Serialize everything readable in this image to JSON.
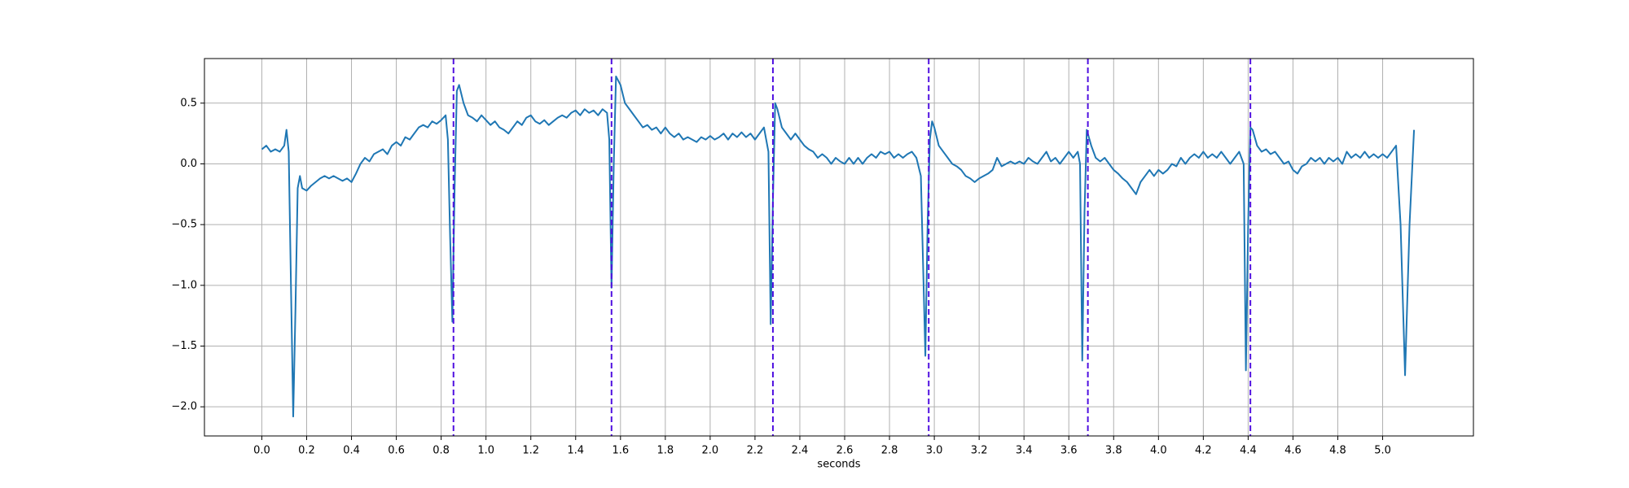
{
  "chart_data": {
    "type": "line",
    "x_label": "seconds",
    "x": [
      0,
      0.02,
      0.04,
      0.06,
      0.08,
      0.1,
      0.11,
      0.12,
      0.13,
      0.14,
      0.15,
      0.16,
      0.17,
      0.18,
      0.2,
      0.22,
      0.24,
      0.26,
      0.28,
      0.3,
      0.32,
      0.34,
      0.36,
      0.38,
      0.4,
      0.42,
      0.44,
      0.46,
      0.48,
      0.5,
      0.52,
      0.54,
      0.56,
      0.58,
      0.6,
      0.62,
      0.64,
      0.66,
      0.68,
      0.7,
      0.72,
      0.74,
      0.76,
      0.78,
      0.8,
      0.82,
      0.83,
      0.84,
      0.85,
      0.86,
      0.87,
      0.88,
      0.9,
      0.92,
      0.94,
      0.96,
      0.98,
      1.0,
      1.02,
      1.04,
      1.06,
      1.08,
      1.1,
      1.12,
      1.14,
      1.16,
      1.18,
      1.2,
      1.22,
      1.24,
      1.26,
      1.28,
      1.3,
      1.32,
      1.34,
      1.36,
      1.38,
      1.4,
      1.42,
      1.44,
      1.46,
      1.48,
      1.5,
      1.52,
      1.54,
      1.55,
      1.56,
      1.57,
      1.58,
      1.6,
      1.62,
      1.64,
      1.66,
      1.68,
      1.7,
      1.72,
      1.74,
      1.76,
      1.78,
      1.8,
      1.82,
      1.84,
      1.86,
      1.88,
      1.9,
      1.92,
      1.94,
      1.96,
      1.98,
      2.0,
      2.02,
      2.04,
      2.06,
      2.08,
      2.1,
      2.12,
      2.14,
      2.16,
      2.18,
      2.2,
      2.22,
      2.24,
      2.26,
      2.27,
      2.28,
      2.29,
      2.3,
      2.32,
      2.34,
      2.36,
      2.38,
      2.4,
      2.42,
      2.44,
      2.46,
      2.48,
      2.5,
      2.52,
      2.54,
      2.56,
      2.58,
      2.6,
      2.62,
      2.64,
      2.66,
      2.68,
      2.7,
      2.72,
      2.74,
      2.76,
      2.78,
      2.8,
      2.82,
      2.84,
      2.86,
      2.88,
      2.9,
      2.92,
      2.94,
      2.96,
      2.97,
      2.98,
      2.99,
      3.0,
      3.02,
      3.04,
      3.06,
      3.08,
      3.1,
      3.12,
      3.14,
      3.16,
      3.18,
      3.2,
      3.22,
      3.24,
      3.26,
      3.28,
      3.3,
      3.32,
      3.34,
      3.36,
      3.38,
      3.4,
      3.42,
      3.44,
      3.46,
      3.48,
      3.5,
      3.52,
      3.54,
      3.56,
      3.58,
      3.6,
      3.62,
      3.64,
      3.65,
      3.66,
      3.67,
      3.68,
      3.7,
      3.72,
      3.74,
      3.76,
      3.78,
      3.8,
      3.82,
      3.84,
      3.86,
      3.88,
      3.9,
      3.92,
      3.94,
      3.96,
      3.98,
      4.0,
      4.02,
      4.04,
      4.06,
      4.08,
      4.1,
      4.12,
      4.14,
      4.16,
      4.18,
      4.2,
      4.22,
      4.24,
      4.26,
      4.28,
      4.3,
      4.32,
      4.34,
      4.36,
      4.38,
      4.39,
      4.4,
      4.41,
      4.42,
      4.44,
      4.46,
      4.48,
      4.5,
      4.52,
      4.54,
      4.56,
      4.58,
      4.6,
      4.62,
      4.64,
      4.66,
      4.68,
      4.7,
      4.72,
      4.74,
      4.76,
      4.78,
      4.8,
      4.82,
      4.84,
      4.86,
      4.88,
      4.9,
      4.92,
      4.94,
      4.96,
      4.98,
      5.0,
      5.02,
      5.04,
      5.06,
      5.08,
      5.1,
      5.12,
      5.14
    ],
    "series": [
      {
        "color": "#1f77b4",
        "values": [
          0.12,
          0.15,
          0.1,
          0.12,
          0.1,
          0.15,
          0.28,
          0.1,
          -1.0,
          -2.08,
          -1.2,
          -0.2,
          -0.1,
          -0.2,
          -0.22,
          -0.18,
          -0.15,
          -0.12,
          -0.1,
          -0.12,
          -0.1,
          -0.12,
          -0.14,
          -0.12,
          -0.15,
          -0.08,
          0.0,
          0.05,
          0.02,
          0.08,
          0.1,
          0.12,
          0.08,
          0.15,
          0.18,
          0.15,
          0.22,
          0.2,
          0.25,
          0.3,
          0.32,
          0.3,
          0.35,
          0.33,
          0.36,
          0.4,
          0.2,
          -0.6,
          -1.3,
          -0.2,
          0.6,
          0.65,
          0.5,
          0.4,
          0.38,
          0.35,
          0.4,
          0.36,
          0.32,
          0.35,
          0.3,
          0.28,
          0.25,
          0.3,
          0.35,
          0.32,
          0.38,
          0.4,
          0.35,
          0.33,
          0.36,
          0.32,
          0.35,
          0.38,
          0.4,
          0.38,
          0.42,
          0.44,
          0.4,
          0.45,
          0.42,
          0.44,
          0.4,
          0.45,
          0.42,
          0.2,
          -1.02,
          0.0,
          0.72,
          0.65,
          0.5,
          0.45,
          0.4,
          0.35,
          0.3,
          0.32,
          0.28,
          0.3,
          0.25,
          0.3,
          0.25,
          0.22,
          0.25,
          0.2,
          0.22,
          0.2,
          0.18,
          0.22,
          0.2,
          0.23,
          0.2,
          0.22,
          0.25,
          0.2,
          0.25,
          0.22,
          0.26,
          0.22,
          0.25,
          0.2,
          0.25,
          0.3,
          0.1,
          -1.32,
          -0.3,
          0.5,
          0.45,
          0.3,
          0.25,
          0.2,
          0.25,
          0.2,
          0.15,
          0.12,
          0.1,
          0.05,
          0.08,
          0.05,
          0.0,
          0.05,
          0.02,
          0.0,
          0.05,
          0.0,
          0.05,
          0.0,
          0.05,
          0.08,
          0.05,
          0.1,
          0.08,
          0.1,
          0.05,
          0.08,
          0.05,
          0.08,
          0.1,
          0.05,
          -0.1,
          -1.58,
          -0.5,
          0.2,
          0.35,
          0.3,
          0.15,
          0.1,
          0.05,
          0.0,
          -0.02,
          -0.05,
          -0.1,
          -0.12,
          -0.15,
          -0.12,
          -0.1,
          -0.08,
          -0.05,
          0.05,
          -0.02,
          0.0,
          0.02,
          0.0,
          0.02,
          0.0,
          0.05,
          0.02,
          0.0,
          0.05,
          0.1,
          0.02,
          0.05,
          0.0,
          0.05,
          0.1,
          0.05,
          0.1,
          0.0,
          -1.62,
          -0.4,
          0.28,
          0.15,
          0.05,
          0.02,
          0.05,
          0.0,
          -0.05,
          -0.08,
          -0.12,
          -0.15,
          -0.2,
          -0.25,
          -0.15,
          -0.1,
          -0.05,
          -0.1,
          -0.05,
          -0.08,
          -0.05,
          0.0,
          -0.02,
          0.05,
          0.0,
          0.05,
          0.08,
          0.05,
          0.1,
          0.05,
          0.08,
          0.05,
          0.1,
          0.05,
          0.0,
          0.05,
          0.1,
          0.0,
          -1.7,
          -0.5,
          0.3,
          0.28,
          0.15,
          0.1,
          0.12,
          0.08,
          0.1,
          0.05,
          0.0,
          0.02,
          -0.05,
          -0.08,
          -0.02,
          0.0,
          0.05,
          0.02,
          0.05,
          0.0,
          0.05,
          0.02,
          0.05,
          0.0,
          0.1,
          0.05,
          0.08,
          0.05,
          0.1,
          0.05,
          0.08,
          0.05,
          0.08,
          0.05,
          0.1,
          0.15,
          -0.5,
          -1.74,
          -0.5,
          0.28
        ]
      }
    ],
    "vlines": [
      0.855,
      1.56,
      2.28,
      2.975,
      3.685,
      4.41
    ],
    "vline_color": "#5010e0",
    "xlim": [
      -0.256,
      5.405
    ],
    "ylim": [
      -2.24,
      0.867
    ],
    "xticks": [
      {
        "value": 0,
        "label": "0.0"
      },
      0.2,
      0.4,
      0.6,
      0.8,
      {
        "value": 1,
        "label": "1.0"
      },
      1.2,
      1.4,
      1.6,
      1.8,
      {
        "value": 2,
        "label": "2.0"
      },
      2.2,
      2.4,
      2.6,
      2.8,
      {
        "value": 3,
        "label": "3.0"
      },
      3.2,
      3.4,
      3.6,
      3.8,
      {
        "value": 4,
        "label": "4.0"
      },
      4.2,
      4.4,
      4.6,
      4.8,
      {
        "value": 5,
        "label": "5.0"
      }
    ],
    "yticks": [
      {
        "value": -2,
        "label": "−2.0"
      },
      {
        "value": -1.5,
        "label": "−1.5"
      },
      {
        "value": -1,
        "label": "−1.0"
      },
      {
        "value": -0.5,
        "label": "−0.5"
      },
      {
        "value": 0,
        "label": "0.0"
      },
      0.5
    ],
    "grid": true
  }
}
